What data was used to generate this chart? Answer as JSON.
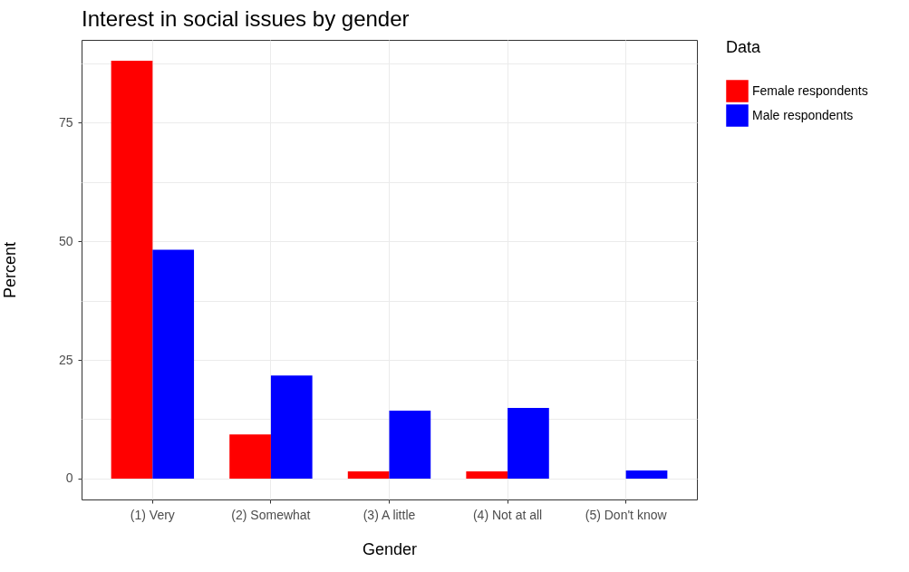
{
  "chart_data": {
    "type": "bar",
    "title": "Interest in social issues by gender",
    "xlabel": "Gender",
    "ylabel": "Percent",
    "legend_title": "Data",
    "categories": [
      "(1) Very",
      "(2) Somewhat",
      "(3) A little",
      "(4) Not at all",
      "(5) Don't know"
    ],
    "series": [
      {
        "name": "Female respondents",
        "color": "#ff0000",
        "values": [
          88.0,
          9.3,
          1.5,
          1.5,
          0
        ]
      },
      {
        "name": "Male respondents",
        "color": "#0000ff",
        "values": [
          48.2,
          21.7,
          14.3,
          14.9,
          1.7
        ]
      }
    ],
    "ylim": [
      -4.4,
      92.4
    ],
    "yticks": [
      0,
      {
        "value": 12.5,
        "label": null
      },
      25,
      {
        "value": 37.5,
        "label": null
      },
      50,
      {
        "value": 62.5,
        "label": null
      },
      75,
      {
        "value": 87.5,
        "label": null
      }
    ],
    "grid": true,
    "legend": "right"
  }
}
